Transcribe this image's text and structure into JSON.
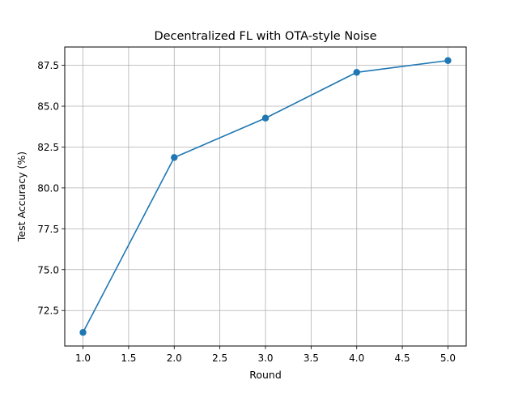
{
  "chart_data": {
    "type": "line",
    "title": "Decentralized FL with OTA-style Noise",
    "xlabel": "Round",
    "ylabel": "Test Accuracy (%)",
    "xlim": [
      0.8,
      5.2
    ],
    "ylim": [
      70.33,
      88.62
    ],
    "x_ticks": [
      1.0,
      1.5,
      2.0,
      2.5,
      3.0,
      3.5,
      4.0,
      4.5,
      5.0
    ],
    "x_tick_labels": [
      "1.0",
      "1.5",
      "2.0",
      "2.5",
      "3.0",
      "3.5",
      "4.0",
      "4.5",
      "5.0"
    ],
    "y_ticks": [
      72.5,
      75.0,
      77.5,
      80.0,
      82.5,
      85.0,
      87.5
    ],
    "y_tick_labels": [
      "72.5",
      "75.0",
      "77.5",
      "80.0",
      "82.5",
      "85.0",
      "87.5"
    ],
    "grid": true,
    "series": [
      {
        "x": [
          1,
          2,
          3,
          4,
          5
        ],
        "values": [
          71.16,
          81.86,
          84.27,
          87.07,
          87.79
        ],
        "color": "#1f77b4",
        "marker": "circle"
      }
    ]
  }
}
